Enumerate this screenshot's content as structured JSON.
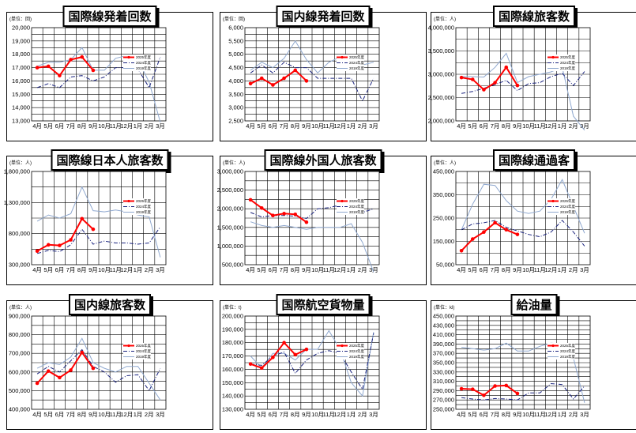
{
  "months": [
    "4月",
    "5月",
    "6月",
    "7月",
    "8月",
    "9月",
    "10月",
    "11月",
    "12月",
    "1月",
    "2月",
    "3月"
  ],
  "legend": [
    "2025年度",
    "2024年度",
    "2019年度"
  ],
  "colors": {
    "fy2025": "#ff0000",
    "fy2024": "#1a237e",
    "fy2019": "#8fa8cf"
  },
  "chart_data": [
    {
      "type": "line",
      "title": "国際線発着回数",
      "unit": "(単位：回)",
      "ylim": [
        13000,
        20000
      ],
      "yticks": [
        "13,000",
        "14,000",
        "15,000",
        "16,000",
        "17,000",
        "18,000",
        "19,000",
        "20,000"
      ],
      "series": [
        {
          "name": "2025年度",
          "values": [
            17000,
            17100,
            16400,
            17600,
            17800,
            16800
          ]
        },
        {
          "name": "2024年度",
          "values": [
            15500,
            15800,
            15500,
            16300,
            16400,
            16000,
            16300,
            17000,
            17000,
            16900,
            15500,
            17800
          ]
        },
        {
          "name": "2019年度",
          "values": [
            17100,
            17400,
            17400,
            17600,
            18500,
            16800,
            16800,
            17700,
            17900,
            17600,
            15900,
            12900
          ]
        }
      ]
    },
    {
      "type": "line",
      "title": "国内線発着回数",
      "unit": "(単位：回)",
      "ylim": [
        2500,
        6000
      ],
      "yticks": [
        "2,500",
        "3,000",
        "3,500",
        "4,000",
        "4,500",
        "5,000",
        "5,500",
        "6,000"
      ],
      "series": [
        {
          "name": "2025年度",
          "values": [
            3900,
            4100,
            3850,
            4100,
            4400,
            4000
          ]
        },
        {
          "name": "2024年度",
          "values": [
            4300,
            4600,
            4300,
            4700,
            4500,
            4500,
            4100,
            4100,
            4100,
            4100,
            3250,
            4100
          ]
        },
        {
          "name": "2019年度",
          "values": [
            4400,
            4700,
            4500,
            4850,
            5500,
            4800,
            4300,
            4700,
            4900,
            4900,
            4600,
            4700
          ]
        }
      ]
    },
    {
      "type": "line",
      "title": "国際線旅客数",
      "unit": "(単位：人)",
      "ylim": [
        2000000,
        4000000
      ],
      "yticks": [
        "2,000,000",
        "2,500,000",
        "3,000,000",
        "3,500,000",
        "4,000,000"
      ],
      "series": [
        {
          "name": "2025年度",
          "values": [
            2930000,
            2890000,
            2670000,
            2820000,
            3150000,
            2760000
          ]
        },
        {
          "name": "2024年度",
          "values": [
            2590000,
            2630000,
            2700000,
            2780000,
            2870000,
            2650000,
            2800000,
            2820000,
            2950000,
            3020000,
            2760000,
            3060000
          ]
        },
        {
          "name": "2019年度",
          "values": [
            2950000,
            2950000,
            2940000,
            3150000,
            3450000,
            2820000,
            2950000,
            3000000,
            3050000,
            3150000,
            2100000,
            1800000
          ]
        }
      ]
    },
    {
      "type": "line",
      "title": "国際線日本人旅客数",
      "unit": "(単位：人)",
      "ylim": [
        300000,
        1800000
      ],
      "yticks": [
        "300,000",
        "800,000",
        "1,300,000",
        "1,800,000"
      ],
      "series": [
        {
          "name": "2025年度",
          "values": [
            520000,
            620000,
            610000,
            700000,
            1040000,
            870000
          ]
        },
        {
          "name": "2024年度",
          "values": [
            480000,
            530000,
            510000,
            620000,
            870000,
            630000,
            680000,
            650000,
            650000,
            630000,
            650000,
            910000
          ]
        },
        {
          "name": "2019年度",
          "values": [
            1000000,
            1100000,
            1050000,
            1120000,
            1550000,
            1170000,
            1150000,
            1180000,
            1150000,
            1100000,
            1070000,
            420000
          ]
        }
      ]
    },
    {
      "type": "line",
      "title": "国際線外国人旅客数",
      "unit": "(単位：人)",
      "ylim": [
        500000,
        3000000
      ],
      "yticks": [
        "500,000",
        "1,000,000",
        "1,500,000",
        "2,000,000",
        "2,500,000",
        "3,000,000"
      ],
      "series": [
        {
          "name": "2025年度",
          "values": [
            2240000,
            2020000,
            1820000,
            1870000,
            1850000,
            1640000
          ]
        },
        {
          "name": "2024年度",
          "values": [
            1900000,
            1780000,
            1820000,
            1820000,
            1800000,
            1740000,
            2000000,
            2030000,
            2100000,
            2200000,
            1900000,
            2000000
          ]
        },
        {
          "name": "2019年度",
          "values": [
            1650000,
            1550000,
            1500000,
            1550000,
            1500000,
            1450000,
            1500000,
            1500000,
            1500000,
            1600000,
            1100000,
            300000
          ]
        }
      ]
    },
    {
      "type": "line",
      "title": "国際線通過客",
      "unit": "(単位：人)",
      "ylim": [
        50000,
        450000
      ],
      "yticks": [
        "50,000",
        "150,000",
        "250,000",
        "350,000",
        "450,000"
      ],
      "series": [
        {
          "name": "2025年度",
          "values": [
            110000,
            160000,
            190000,
            230000,
            200000,
            180000
          ]
        },
        {
          "name": "2024年度",
          "values": [
            200000,
            225000,
            230000,
            240000,
            210000,
            195000,
            180000,
            170000,
            190000,
            240000,
            190000,
            130000
          ]
        },
        {
          "name": "2019年度",
          "values": [
            200000,
            310000,
            395000,
            390000,
            325000,
            280000,
            270000,
            280000,
            330000,
            415000,
            300000,
            185000
          ]
        }
      ]
    },
    {
      "type": "line",
      "title": "国内線旅客数",
      "unit": "(単位：人)",
      "ylim": [
        400000,
        900000
      ],
      "yticks": [
        "400,000",
        "500,000",
        "600,000",
        "700,000",
        "800,000",
        "900,000"
      ],
      "series": [
        {
          "name": "2025年度",
          "values": [
            540000,
            605000,
            570000,
            610000,
            705000,
            620000
          ]
        },
        {
          "name": "2024年度",
          "values": [
            590000,
            630000,
            600000,
            660000,
            720000,
            630000,
            600000,
            545000,
            580000,
            585000,
            500000,
            620000
          ]
        },
        {
          "name": "2019年度",
          "values": [
            620000,
            650000,
            640000,
            680000,
            780000,
            650000,
            620000,
            600000,
            630000,
            630000,
            540000,
            450000
          ]
        }
      ]
    },
    {
      "type": "line",
      "title": "国際航空貨物量",
      "unit": "(単位：t)",
      "ylim": [
        130000,
        200000
      ],
      "yticks": [
        "130,000",
        "140,000",
        "150,000",
        "160,000",
        "170,000",
        "180,000",
        "190,000",
        "200,000"
      ],
      "series": [
        {
          "name": "2025年度",
          "values": [
            164000,
            161000,
            169000,
            180000,
            171000,
            175000
          ]
        },
        {
          "name": "2024年度",
          "values": [
            164000,
            163000,
            170000,
            173000,
            157000,
            167000,
            172000,
            174000,
            172000,
            158000,
            145000,
            187000
          ]
        },
        {
          "name": "2019年度",
          "values": [
            170000,
            161000,
            172000,
            172000,
            167000,
            175000,
            175000,
            189000,
            175000,
            150000,
            140000,
            188000
          ]
        }
      ]
    },
    {
      "type": "line",
      "title": "給油量",
      "unit": "(単位：kl)",
      "ylim": [
        250000,
        450000
      ],
      "yticks": [
        "250,000",
        "270,000",
        "290,000",
        "310,000",
        "330,000",
        "350,000",
        "370,000",
        "390,000",
        "410,000",
        "430,000",
        "450,000"
      ],
      "series": [
        {
          "name": "2025年度",
          "values": [
            294000,
            293000,
            280000,
            300000,
            301000,
            284000
          ]
        },
        {
          "name": "2024年度",
          "values": [
            275000,
            272000,
            270000,
            273000,
            272000,
            270000,
            285000,
            285000,
            305000,
            303000,
            272000,
            300000
          ]
        },
        {
          "name": "2019年度",
          "values": [
            383000,
            380000,
            377000,
            380000,
            392000,
            375000,
            375000,
            385000,
            392000,
            390000,
            360000,
            264000
          ]
        }
      ]
    }
  ]
}
